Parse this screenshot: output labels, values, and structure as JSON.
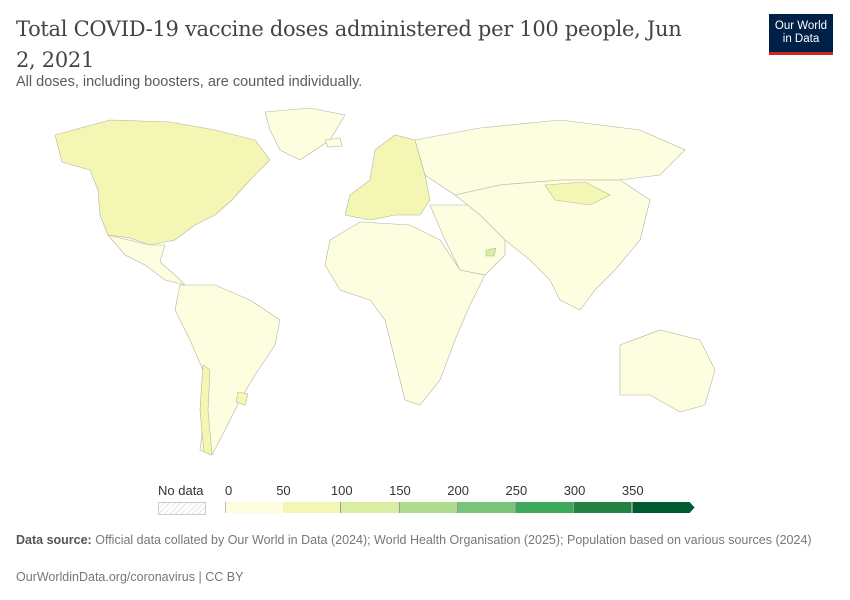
{
  "header": {
    "title": "Total COVID-19 vaccine doses administered per 100 people, Jun 2, 2021",
    "subtitle": "All doses, including boosters, are counted individually.",
    "logo": [
      "Our World",
      "in Data"
    ]
  },
  "chart_data": {
    "type": "choropleth-map",
    "title": "Total COVID-19 vaccine doses administered per 100 people, Jun 2, 2021",
    "subtitle": "All doses, including boosters, are counted individually.",
    "legend": {
      "no_data_label": "No data",
      "ticks": [
        "0",
        "50",
        "100",
        "150",
        "200",
        "250",
        "300",
        "350"
      ],
      "bins": [
        {
          "range": "0-50",
          "color": "#fdfde0"
        },
        {
          "range": "50-100",
          "color": "#f4f7b4"
        },
        {
          "range": "100-150",
          "color": "#d9eea2"
        },
        {
          "range": "150-200",
          "color": "#aedb8e"
        },
        {
          "range": "200-250",
          "color": "#78c47a"
        },
        {
          "range": "250-300",
          "color": "#3ea95a"
        },
        {
          "range": "300-350",
          "color": "#228344"
        },
        {
          "range": ">350",
          "color": "#005a32"
        }
      ]
    },
    "regions": [
      {
        "name": "North America (USA, Canada)",
        "bin": 1
      },
      {
        "name": "Greenland",
        "bin": 0
      },
      {
        "name": "Mexico & Central America",
        "bin": 0
      },
      {
        "name": "South America",
        "bin": 0
      },
      {
        "name": "Chile",
        "bin": 1
      },
      {
        "name": "Uruguay",
        "bin": 1
      },
      {
        "name": "Europe",
        "bin": 1
      },
      {
        "name": "Russia",
        "bin": 0
      },
      {
        "name": "Africa",
        "bin": 0
      },
      {
        "name": "Middle East",
        "bin": 0
      },
      {
        "name": "UAE",
        "bin": 2
      },
      {
        "name": "Asia",
        "bin": 0
      },
      {
        "name": "Mongolia",
        "bin": 1
      },
      {
        "name": "Australia",
        "bin": 0
      },
      {
        "name": "Iceland",
        "bin": 0
      }
    ]
  },
  "footer": {
    "source_label": "Data source:",
    "source_text": "Official data collated by Our World in Data (2024); World Health Organisation (2025); Population based on various sources (2024)",
    "url": "OurWorldinData.org/coronavirus | CC BY"
  }
}
